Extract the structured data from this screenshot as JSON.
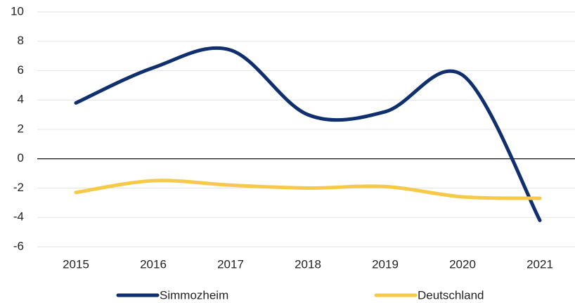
{
  "chart_data": {
    "type": "line",
    "categories": [
      "2015",
      "2016",
      "2017",
      "2018",
      "2019",
      "2020",
      "2021"
    ],
    "series": [
      {
        "name": "Simmozheim",
        "color": "#0f2f6e",
        "values": [
          3.8,
          6.2,
          7.4,
          3.0,
          3.2,
          5.7,
          -4.2
        ]
      },
      {
        "name": "Deutschland",
        "color": "#f7c948",
        "values": [
          -2.3,
          -1.5,
          -1.8,
          -2.0,
          -1.9,
          -2.6,
          -2.7
        ]
      }
    ],
    "ylim": [
      -6,
      10
    ],
    "yticks": [
      -6,
      -4,
      -2,
      0,
      2,
      4,
      6,
      8,
      10
    ],
    "grid": true,
    "smooth": true,
    "legend": "bottom"
  }
}
